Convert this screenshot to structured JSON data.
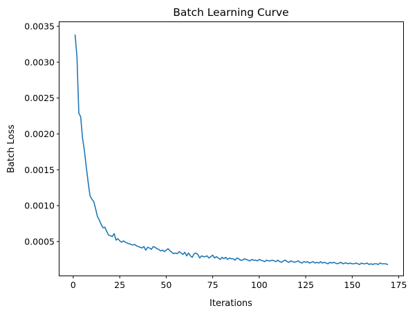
{
  "chart_data": {
    "type": "line",
    "title": "Batch Learning Curve",
    "xlabel": "Iterations",
    "ylabel": "Batch Loss",
    "xlim": [
      -7.4,
      177.4
    ],
    "ylim": [
      2.6e-05,
      0.003558
    ],
    "xticks": [
      0,
      25,
      50,
      75,
      100,
      125,
      150,
      175
    ],
    "yticks": [
      0.0005,
      0.001,
      0.0015,
      0.002,
      0.0025,
      0.003,
      0.0035
    ],
    "xtick_labels": [
      "0",
      "25",
      "50",
      "75",
      "100",
      "125",
      "150",
      "175"
    ],
    "ytick_labels": [
      "0.0005",
      "0.0010",
      "0.0015",
      "0.0020",
      "0.0025",
      "0.0030",
      "0.0035"
    ],
    "grid": false,
    "legend": "none",
    "line_color": "#1f77b4",
    "series": [
      {
        "x": [
          1,
          2,
          3,
          4,
          5,
          6,
          7,
          8,
          9,
          10,
          11,
          12,
          13,
          14,
          15,
          16,
          17,
          18,
          19,
          20,
          21,
          22,
          23,
          24,
          25,
          26,
          27,
          28,
          29,
          30,
          31,
          32,
          33,
          34,
          35,
          36,
          37,
          38,
          39,
          40,
          41,
          42,
          43,
          44,
          45,
          46,
          47,
          48,
          49,
          50,
          51,
          52,
          53,
          54,
          55,
          56,
          57,
          58,
          59,
          60,
          61,
          62,
          63,
          64,
          65,
          66,
          67,
          68,
          69,
          70,
          71,
          72,
          73,
          74,
          75,
          76,
          77,
          78,
          79,
          80,
          81,
          82,
          83,
          84,
          85,
          86,
          87,
          88,
          89,
          90,
          91,
          92,
          93,
          94,
          95,
          96,
          97,
          98,
          99,
          100,
          101,
          102,
          103,
          104,
          105,
          106,
          107,
          108,
          109,
          110,
          111,
          112,
          113,
          114,
          115,
          116,
          117,
          118,
          119,
          120,
          121,
          122,
          123,
          124,
          125,
          126,
          127,
          128,
          129,
          130,
          131,
          132,
          133,
          134,
          135,
          136,
          137,
          138,
          139,
          140,
          141,
          142,
          143,
          144,
          145,
          146,
          147,
          148,
          149,
          150,
          151,
          152,
          153,
          154,
          155,
          156,
          157,
          158,
          159,
          160,
          161,
          162,
          163,
          164,
          165,
          166,
          167,
          168,
          169
        ],
        "values": [
          0.00338,
          0.00308,
          0.00229,
          0.00224,
          0.00194,
          0.00177,
          0.00154,
          0.00133,
          0.00114,
          0.00109,
          0.00106,
          0.00096,
          0.00085,
          0.0008,
          0.00074,
          0.00069,
          0.0007,
          0.00064,
          0.00059,
          0.00058,
          0.00057,
          0.00061,
          0.00052,
          0.00054,
          0.00051,
          0.00049,
          0.00051,
          0.00049,
          0.00048,
          0.00047,
          0.00046,
          0.00045,
          0.00046,
          0.00044,
          0.00043,
          0.00042,
          0.00041,
          0.00043,
          0.00038,
          0.00042,
          0.00041,
          0.00039,
          0.00043,
          0.00042,
          0.0004,
          0.00039,
          0.00037,
          0.00038,
          0.00036,
          0.00038,
          0.0004,
          0.00037,
          0.00035,
          0.00033,
          0.00034,
          0.00033,
          0.00036,
          0.00034,
          0.00032,
          0.00035,
          0.0003,
          0.00034,
          0.0003,
          0.00028,
          0.00033,
          0.00034,
          0.00032,
          0.00027,
          0.0003,
          0.00029,
          0.00029,
          0.0003,
          0.00027,
          0.00029,
          0.00031,
          0.00027,
          0.00029,
          0.00027,
          0.00025,
          0.00028,
          0.00026,
          0.00028,
          0.00025,
          0.00027,
          0.00026,
          0.00026,
          0.00024,
          0.00027,
          0.00026,
          0.00024,
          0.00024,
          0.00026,
          0.00025,
          0.00024,
          0.00023,
          0.00025,
          0.00024,
          0.00024,
          0.00023,
          0.00025,
          0.00024,
          0.00023,
          0.00022,
          0.00024,
          0.00023,
          0.00023,
          0.00024,
          0.00023,
          0.00022,
          0.00024,
          0.00022,
          0.00021,
          0.00023,
          0.00024,
          0.00022,
          0.00021,
          0.00023,
          0.00022,
          0.00021,
          0.00022,
          0.00023,
          0.00021,
          0.0002,
          0.00022,
          0.00021,
          0.00022,
          0.0002,
          0.00021,
          0.00022,
          0.0002,
          0.00021,
          0.0002,
          0.00022,
          0.0002,
          0.00021,
          0.0002,
          0.00019,
          0.00021,
          0.0002,
          0.00021,
          0.0002,
          0.00019,
          0.0002,
          0.00021,
          0.00019,
          0.0002,
          0.0002,
          0.00019,
          0.0002,
          0.00019,
          0.00019,
          0.0002,
          0.00019,
          0.00018,
          0.0002,
          0.00019,
          0.00019,
          0.0002,
          0.00018,
          0.00019,
          0.00018,
          0.00019,
          0.00019,
          0.00018,
          0.0002,
          0.00019,
          0.00019,
          0.00019,
          0.00018
        ]
      }
    ]
  }
}
